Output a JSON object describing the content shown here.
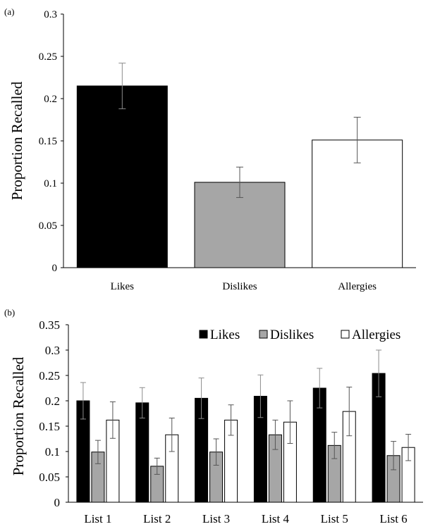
{
  "chart_data": [
    {
      "panel_label": "(a)",
      "type": "bar",
      "categories": [
        "Likes",
        "Dislikes",
        "Allergies"
      ],
      "values": [
        0.215,
        0.101,
        0.151
      ],
      "error": [
        0.027,
        0.018,
        0.027
      ],
      "bar_colors": [
        "#000000",
        "#a6a6a6",
        "#ffffff"
      ],
      "ylabel": "Proportion Recalled",
      "ylim": [
        0,
        0.3
      ],
      "yticks": [
        0,
        0.05,
        0.1,
        0.15,
        0.2,
        0.25,
        0.3
      ],
      "ytick_labels": [
        "0",
        "0.05",
        "0.1",
        "0.15",
        "0.2",
        "0.25",
        "0.3"
      ],
      "grid": false,
      "legend": "none"
    },
    {
      "panel_label": "(b)",
      "type": "bar",
      "categories": [
        "List 1",
        "List 2",
        "List 3",
        "List 4",
        "List 5",
        "List 6"
      ],
      "series": [
        {
          "name": "Likes",
          "color": "#000000",
          "values": [
            0.2,
            0.196,
            0.205,
            0.209,
            0.225,
            0.254
          ],
          "error": [
            0.036,
            0.03,
            0.04,
            0.042,
            0.039,
            0.046
          ]
        },
        {
          "name": "Dislikes",
          "color": "#a6a6a6",
          "values": [
            0.099,
            0.071,
            0.099,
            0.133,
            0.112,
            0.092
          ],
          "error": [
            0.023,
            0.016,
            0.026,
            0.029,
            0.026,
            0.028
          ]
        },
        {
          "name": "Allergies",
          "color": "#ffffff",
          "values": [
            0.162,
            0.133,
            0.162,
            0.158,
            0.179,
            0.108
          ],
          "error": [
            0.036,
            0.033,
            0.03,
            0.042,
            0.048,
            0.026
          ]
        }
      ],
      "ylabel": "Proportion Recalled",
      "ylim": [
        0,
        0.35
      ],
      "yticks": [
        0,
        0.05,
        0.1,
        0.15,
        0.2,
        0.25,
        0.3,
        0.35
      ],
      "ytick_labels": [
        "0",
        "0.05",
        "0.1",
        "0.15",
        "0.2",
        "0.25",
        "0.3",
        "0.35"
      ],
      "grid": false,
      "legend": "top-right"
    }
  ]
}
